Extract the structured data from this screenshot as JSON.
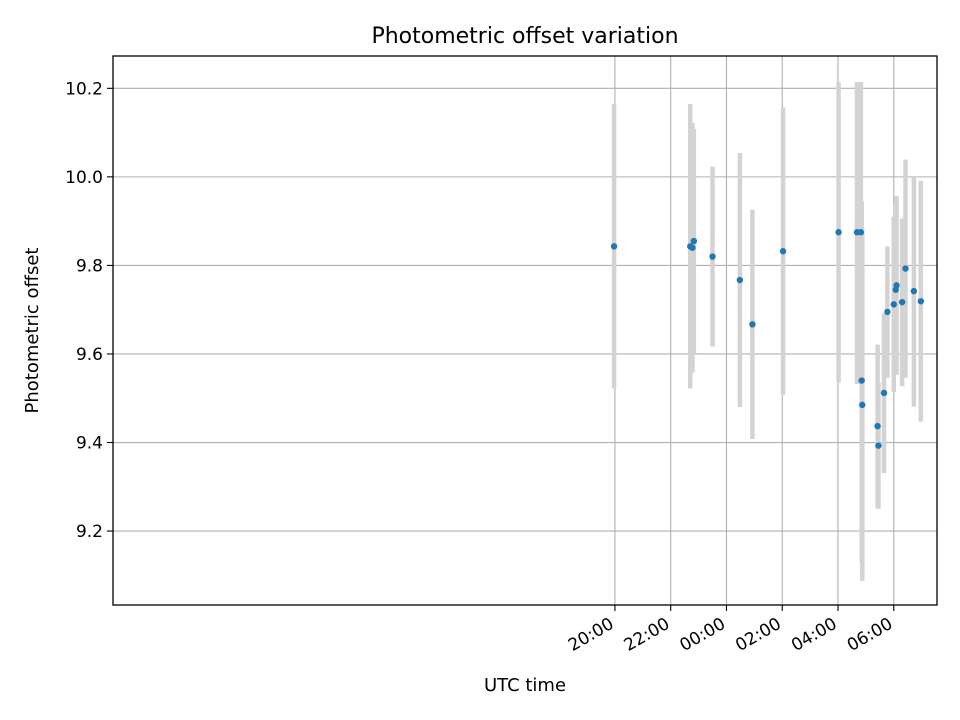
{
  "chart_data": {
    "type": "scatter",
    "title": "Photometric offset variation",
    "xlabel": "UTC time",
    "ylabel": "Photometric offset",
    "x_unit": "hours after 00:00 UTC (negative = previous day)",
    "xlim": [
      -22.0,
      7.55
    ],
    "ylim": [
      9.033,
      10.273
    ],
    "x_ticks": [
      {
        "value": -4,
        "label": "20:00"
      },
      {
        "value": -2,
        "label": "22:00"
      },
      {
        "value": 0,
        "label": "00:00"
      },
      {
        "value": 2,
        "label": "02:00"
      },
      {
        "value": 4,
        "label": "04:00"
      },
      {
        "value": 6,
        "label": "06:00"
      }
    ],
    "y_ticks": [
      {
        "value": 9.2,
        "label": "9.2"
      },
      {
        "value": 9.4,
        "label": "9.4"
      },
      {
        "value": 9.6,
        "label": "9.6"
      },
      {
        "value": 9.8,
        "label": "9.8"
      },
      {
        "value": 10.0,
        "label": "10.0"
      },
      {
        "value": 10.2,
        "label": "10.2"
      }
    ],
    "grid": true,
    "colors": {
      "points": "#1f77b4",
      "errorbars": "#d3d3d3",
      "grid": "#b0b0b0"
    },
    "points": [
      {
        "x": -4.03,
        "y": 9.843,
        "yerr_low": 9.522,
        "yerr_high": 10.165
      },
      {
        "x": -1.3,
        "y": 9.843,
        "yerr_low": 9.522,
        "yerr_high": 10.165
      },
      {
        "x": -1.22,
        "y": 9.84,
        "yerr_low": 9.558,
        "yerr_high": 10.122
      },
      {
        "x": -1.17,
        "y": 9.855,
        "yerr_low": 9.602,
        "yerr_high": 10.108
      },
      {
        "x": -0.5,
        "y": 9.82,
        "yerr_low": 9.617,
        "yerr_high": 10.023
      },
      {
        "x": 0.48,
        "y": 9.767,
        "yerr_low": 9.48,
        "yerr_high": 10.054
      },
      {
        "x": 0.93,
        "y": 9.667,
        "yerr_low": 9.408,
        "yerr_high": 9.926
      },
      {
        "x": 2.03,
        "y": 9.832,
        "yerr_low": 9.507,
        "yerr_high": 10.157
      },
      {
        "x": 4.02,
        "y": 9.875,
        "yerr_low": 9.536,
        "yerr_high": 10.214
      },
      {
        "x": 4.68,
        "y": 9.875,
        "yerr_low": 9.532,
        "yerr_high": 10.214
      },
      {
        "x": 4.82,
        "y": 9.875,
        "yerr_low": 9.532,
        "yerr_high": 10.214
      },
      {
        "x": 4.85,
        "y": 9.54,
        "yerr_low": 9.131,
        "yerr_high": 9.945
      },
      {
        "x": 4.87,
        "y": 9.485,
        "yerr_low": 9.087,
        "yerr_high": 9.883
      },
      {
        "x": 5.42,
        "y": 9.437,
        "yerr_low": 9.253,
        "yerr_high": 9.621
      },
      {
        "x": 5.45,
        "y": 9.393,
        "yerr_low": 9.25,
        "yerr_high": 9.536
      },
      {
        "x": 5.65,
        "y": 9.512,
        "yerr_low": 9.331,
        "yerr_high": 9.692
      },
      {
        "x": 5.77,
        "y": 9.695,
        "yerr_low": 9.546,
        "yerr_high": 9.843
      },
      {
        "x": 6.0,
        "y": 9.712,
        "yerr_low": 9.514,
        "yerr_high": 9.91
      },
      {
        "x": 6.07,
        "y": 9.745,
        "yerr_low": 9.553,
        "yerr_high": 9.937
      },
      {
        "x": 6.1,
        "y": 9.755,
        "yerr_low": 9.553,
        "yerr_high": 9.957
      },
      {
        "x": 6.3,
        "y": 9.717,
        "yerr_low": 9.527,
        "yerr_high": 9.906
      },
      {
        "x": 6.42,
        "y": 9.793,
        "yerr_low": 9.546,
        "yerr_high": 10.039
      },
      {
        "x": 6.72,
        "y": 9.742,
        "yerr_low": 9.481,
        "yerr_high": 10.0
      },
      {
        "x": 6.97,
        "y": 9.719,
        "yerr_low": 9.447,
        "yerr_high": 9.991
      }
    ]
  }
}
